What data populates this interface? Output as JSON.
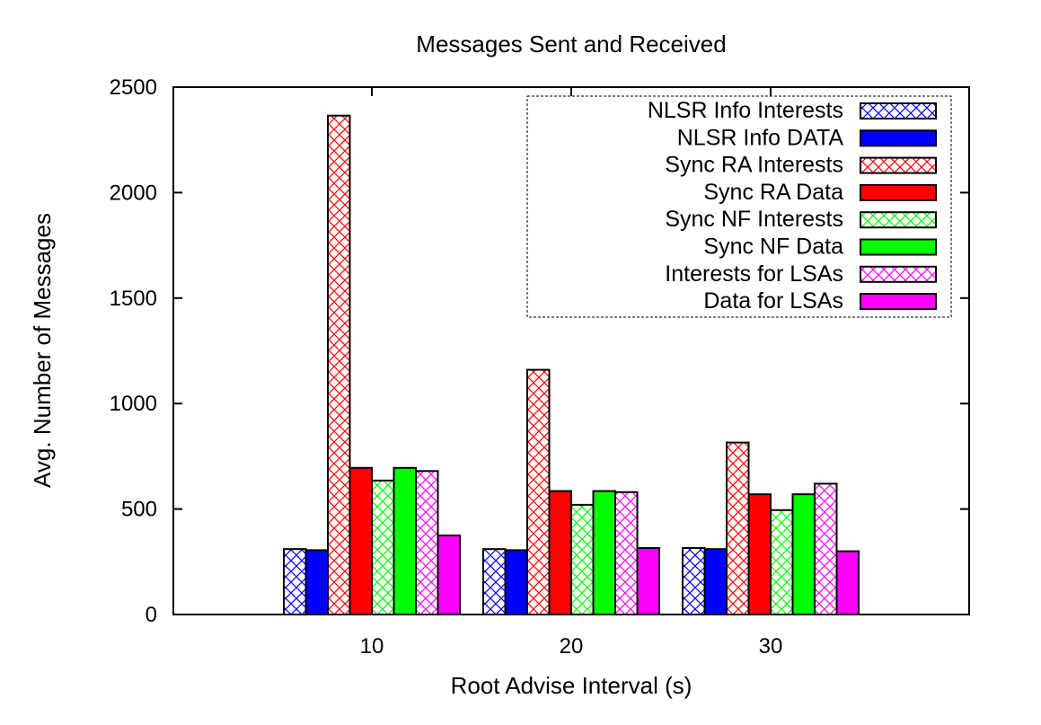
{
  "chart_data": {
    "type": "bar",
    "title": "Messages Sent and Received",
    "xlabel": "Root Advise Interval (s)",
    "ylabel": "Avg. Number of Messages",
    "categories": [
      "10",
      "20",
      "30"
    ],
    "ylim": [
      0,
      2500
    ],
    "yticks": [
      "0",
      "500",
      "1000",
      "1500",
      "2000",
      "2500"
    ],
    "grid": false,
    "legend_position": "top-right",
    "series": [
      {
        "name": "NLSR Info Interests",
        "values": [
          310,
          310,
          315
        ],
        "color": "#0000ff",
        "pattern": "crosshatch"
      },
      {
        "name": "NLSR Info DATA",
        "values": [
          305,
          305,
          310
        ],
        "color": "#0000ff",
        "pattern": "solid"
      },
      {
        "name": "Sync RA Interests",
        "values": [
          2365,
          1160,
          815
        ],
        "color": "#ff0000",
        "pattern": "crosshatch"
      },
      {
        "name": "Sync RA Data",
        "values": [
          695,
          585,
          570
        ],
        "color": "#ff0000",
        "pattern": "solid"
      },
      {
        "name": "Sync NF Interests",
        "values": [
          635,
          520,
          495
        ],
        "color": "#00ff00",
        "pattern": "crosshatch"
      },
      {
        "name": "Sync NF Data",
        "values": [
          695,
          585,
          570
        ],
        "color": "#00ff00",
        "pattern": "solid"
      },
      {
        "name": "Interests for LSAs",
        "values": [
          680,
          580,
          620
        ],
        "color": "#ff00ff",
        "pattern": "crosshatch"
      },
      {
        "name": "Data for LSAs",
        "values": [
          375,
          315,
          300
        ],
        "color": "#ff00ff",
        "pattern": "solid"
      }
    ]
  }
}
